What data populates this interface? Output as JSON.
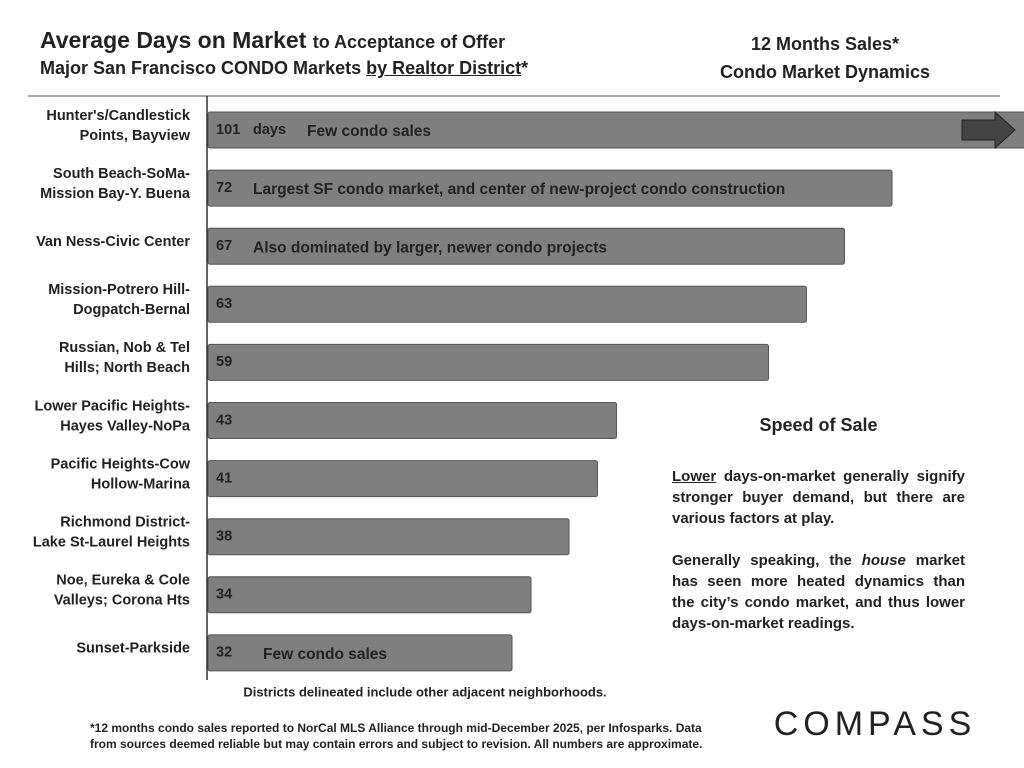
{
  "chart_data": {
    "type": "bar",
    "title": [
      "Average Days on Market",
      "to Acceptance of Offer"
    ],
    "subtitle": [
      "Major San Francisco CONDO Markets",
      "by Realtor District",
      "*"
    ],
    "side_title": [
      "12 Months Sales*",
      "Condo Market Dynamics"
    ],
    "categories": [
      [
        "Hunter's/Candlestick",
        "Points, Bayview"
      ],
      [
        "South Beach-SoMa-",
        "Mission Bay-Y. Buena"
      ],
      [
        "Van Ness-Civic Center"
      ],
      [
        "Mission-Potrero Hill-",
        "Dogpatch-Bernal"
      ],
      [
        "Russian, Nob & Tel",
        "Hills; North Beach"
      ],
      [
        "Lower Pacific Heights-",
        "Hayes Valley-NoPa"
      ],
      [
        "Pacific Heights-Cow",
        "Hollow-Marina"
      ],
      [
        "Richmond District-",
        "Lake St-Laurel Heights"
      ],
      [
        "Noe, Eureka & Cole",
        "Valleys; Corona Hts"
      ],
      [
        "Sunset-Parkside"
      ]
    ],
    "values": [
      101,
      72,
      67,
      63,
      59,
      43,
      41,
      38,
      34,
      32
    ],
    "unit_label": "days",
    "notes": [
      "Few condo sales",
      "Largest SF condo market, and center of new-project condo construction",
      "Also dominated by larger, newer condo projects",
      null,
      null,
      null,
      null,
      null,
      null,
      "Few condo sales"
    ],
    "color": "#7f7f7f",
    "sidebar": {
      "heading": "Speed of Sale",
      "paragraphs": [
        [
          "Lower",
          "days-on-market generally signify stronger buyer demand, but there are various factors at play."
        ],
        [
          "Generally speaking, the",
          "house",
          "market has seen more heated dynamics than the city’s condo market, and thus lower days-on-market readings."
        ]
      ]
    },
    "axis_note": "Districts delineated include other adjacent neighborhoods.",
    "footnote": [
      "*12 months condo sales reported to NorCal MLS Alliance through mid-December 2025, per Infosparks. Data",
      "from sources deemed reliable but may contain errors and subject to revision. All numbers are approximate."
    ],
    "logo": "COMPASS"
  }
}
